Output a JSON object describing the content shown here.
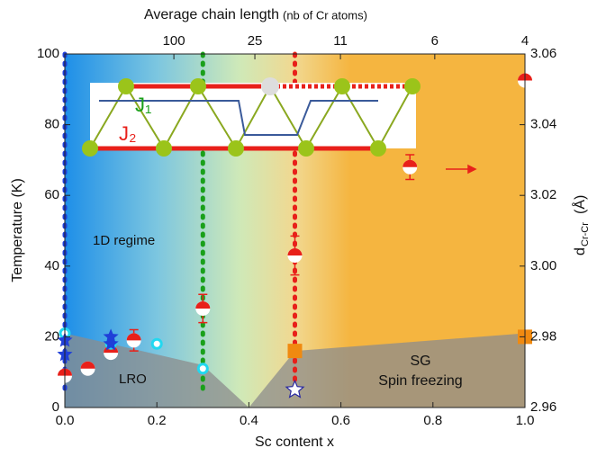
{
  "chart_data": {
    "type": "scatter",
    "xlabel": "Sc content x",
    "ylabel": "Temperature (K)",
    "x2label": "Average chain length",
    "x2label_note": "(nb of Cr atoms)",
    "y2label": "d",
    "y2label_sub": "Cr-Cr",
    "y2label_unit": "(Å)",
    "xlim": [
      0,
      1
    ],
    "ylim": [
      0,
      100
    ],
    "y2lim": [
      2.96,
      3.06
    ],
    "xticks": [
      {
        "value": 0,
        "label": "0.0"
      },
      {
        "value": 0.2,
        "label": "0.2"
      },
      {
        "value": 0.4,
        "label": "0.4"
      },
      {
        "value": 0.6,
        "label": "0.6"
      },
      {
        "value": 0.8,
        "label": "0.8"
      },
      {
        "value": 1,
        "label": "1.0"
      }
    ],
    "yticks": [
      0,
      20,
      40,
      60,
      80,
      100
    ],
    "y2ticks": [
      2.96,
      2.98,
      {
        "value": 3,
        "label": "3.00"
      },
      3.02,
      3.04,
      3.06
    ],
    "x2ticks": [
      {
        "value": 0.237,
        "label": "100"
      },
      {
        "value": 0.413,
        "label": "25"
      },
      {
        "value": 0.599,
        "label": "11"
      },
      {
        "value": 0.804,
        "label": "6"
      },
      {
        "value": 1,
        "label": "4"
      }
    ],
    "annotations": [
      "1D regime",
      "LRO",
      "SG",
      "Spin freezing",
      "J₁",
      "J₂"
    ],
    "phase_boundary": {
      "color": "#8c8c8c",
      "x": [
        0,
        0.3,
        0.4,
        0.5,
        1.0
      ],
      "values": [
        21,
        12,
        0,
        16,
        21
      ]
    },
    "vlines": [
      {
        "x": 0,
        "color": "#1f3fd8"
      },
      {
        "x": 0.3,
        "color": "#1aa01a"
      },
      {
        "x": 0.5,
        "color": "#e8201a"
      }
    ],
    "series": [
      {
        "marker": "half",
        "color": "#e8201a",
        "x": [
          0,
          0.05,
          0.1,
          0.15,
          0.3,
          0.5,
          0.75,
          1.0
        ],
        "values": [
          9,
          11,
          15.5,
          19,
          28,
          43,
          68,
          92.5
        ],
        "errors": [
          null,
          null,
          null,
          3,
          4,
          5.5,
          3.5,
          null
        ]
      },
      {
        "marker": "ring",
        "color": "#22d8f0",
        "x": [
          0,
          0.1,
          0.2,
          0.3
        ],
        "values": [
          21,
          18,
          18,
          11
        ]
      },
      {
        "marker": "star",
        "color": "#1f3fd8",
        "x": [
          0,
          0,
          0.1,
          0.1
        ],
        "values": [
          15,
          19,
          18,
          20
        ]
      },
      {
        "marker": "square",
        "color": "#f08a10",
        "x": [
          0.5,
          1.0
        ],
        "values": [
          16,
          20
        ]
      },
      {
        "marker": "open-star",
        "color": "#2a2aa0",
        "x": [
          0.5
        ],
        "values": [
          5
        ]
      }
    ]
  }
}
